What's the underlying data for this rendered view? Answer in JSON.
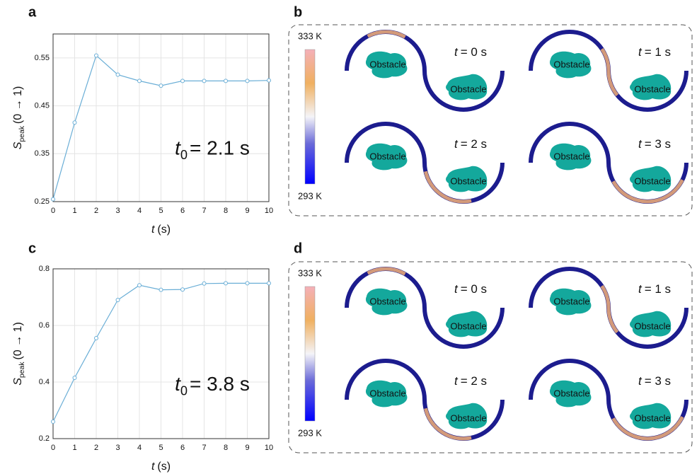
{
  "panel_labels": [
    "a",
    "b",
    "c",
    "d"
  ],
  "chart_data": [
    {
      "type": "line",
      "x": [
        0,
        1,
        2,
        3,
        4,
        5,
        6,
        7,
        8,
        9,
        10
      ],
      "series": [
        {
          "color": "#6aaed6",
          "values": [
            0.255,
            0.415,
            0.555,
            0.515,
            0.502,
            0.492,
            0.502,
            0.502,
            0.502,
            0.502,
            0.503
          ]
        }
      ],
      "xlim": [
        0,
        10
      ],
      "ylim": [
        0.25,
        0.6
      ],
      "xticks": [
        0,
        1,
        2,
        3,
        4,
        5,
        6,
        7,
        8,
        9,
        10
      ],
      "yticks": [
        0.25,
        0.35,
        0.45,
        0.55
      ],
      "grid": true,
      "x_label": {
        "symbol": "t",
        "text": "(s)"
      },
      "y_label": {
        "symbol": "S",
        "subscript": "peak",
        "text": "(0 → 1)"
      },
      "annotation": {
        "symbol": "t",
        "subscript": "0",
        "text": "= 2.1 s"
      }
    },
    {
      "type": "line",
      "x": [
        0,
        1,
        2,
        3,
        4,
        5,
        6,
        7,
        8,
        9,
        10
      ],
      "series": [
        {
          "color": "#6aaed6",
          "values": [
            0.26,
            0.415,
            0.555,
            0.69,
            0.742,
            0.726,
            0.727,
            0.748,
            0.749,
            0.749,
            0.749
          ]
        }
      ],
      "xlim": [
        0,
        10
      ],
      "ylim": [
        0.2,
        0.8
      ],
      "xticks": [
        0,
        1,
        2,
        3,
        4,
        5,
        6,
        7,
        8,
        9,
        10
      ],
      "yticks": [
        0.2,
        0.4,
        0.6,
        0.8
      ],
      "grid": true,
      "x_label": {
        "symbol": "t",
        "text": "(s)"
      },
      "y_label": {
        "symbol": "S",
        "subscript": "peak",
        "text": "(0 → 1)"
      },
      "annotation": {
        "symbol": "t",
        "subscript": "0",
        "text": "= 3.8 s"
      }
    }
  ],
  "simulations": [
    {
      "colorbar": {
        "max": "333 K",
        "min": "293 K"
      },
      "frames": [
        {
          "time": {
            "symbol": "t",
            "text": "= 0 s"
          },
          "obstacles": [
            "Obstacle",
            "Obstacle"
          ]
        },
        {
          "time": {
            "symbol": "t",
            "text": "= 1 s"
          },
          "obstacles": [
            "Obstacle",
            "Obstacle"
          ]
        },
        {
          "time": {
            "symbol": "t",
            "text": "= 2 s"
          },
          "obstacles": [
            "Obstacle",
            "Obstacle"
          ]
        },
        {
          "time": {
            "symbol": "t",
            "text": "= 3 s"
          },
          "obstacles": [
            "Obstacle",
            "Obstacle"
          ]
        }
      ]
    },
    {
      "colorbar": {
        "max": "333 K",
        "min": "293 K"
      },
      "frames": [
        {
          "time": {
            "symbol": "t",
            "text": "= 0 s"
          },
          "obstacles": [
            "Obstacle",
            "Obstacle"
          ]
        },
        {
          "time": {
            "symbol": "t",
            "text": "= 1 s"
          },
          "obstacles": [
            "Obstacle",
            "Obstacle"
          ]
        },
        {
          "time": {
            "symbol": "t",
            "text": "= 2 s"
          },
          "obstacles": [
            "Obstacle",
            "Obstacle"
          ]
        },
        {
          "time": {
            "symbol": "t",
            "text": "= 3 s"
          },
          "obstacles": [
            "Obstacle",
            "Obstacle"
          ]
        }
      ]
    }
  ]
}
